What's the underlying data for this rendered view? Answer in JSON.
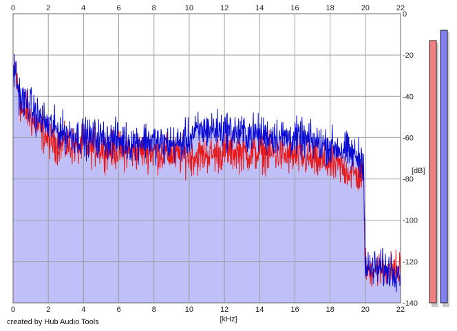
{
  "credit": "created by Hub Audio Tools",
  "chart_data": {
    "type": "line",
    "xlabel": "[kHz]",
    "ylabel": "[dB]",
    "xlim": [
      0,
      22
    ],
    "ylim": [
      -140,
      0
    ],
    "x_ticks": [
      0,
      2,
      4,
      6,
      8,
      10,
      12,
      14,
      16,
      18,
      20,
      22
    ],
    "y_ticks": [
      0,
      -20,
      -40,
      -60,
      -80,
      -100,
      -120,
      -140
    ],
    "grid": true,
    "colors": {
      "left": "#e81818",
      "right": "#0a0ad0",
      "fill": "#c0c0f8",
      "grid": "#9a9a9a"
    },
    "series": [
      {
        "channel": "left",
        "x": [
          0,
          0.1,
          0.2,
          0.3,
          0.5,
          0.8,
          1.0,
          1.3,
          1.6,
          2.0,
          2.5,
          3.0,
          3.5,
          4.0,
          4.5,
          5.0,
          5.5,
          6.0,
          6.5,
          7.0,
          7.5,
          8.0,
          8.5,
          9.0,
          9.5,
          10.0,
          10.5,
          11.0,
          11.5,
          12.0,
          12.5,
          13.0,
          13.5,
          14.0,
          14.5,
          15.0,
          15.5,
          16.0,
          16.5,
          17.0,
          17.5,
          18.0,
          18.5,
          19.0,
          19.5,
          19.9,
          20.0,
          20.1,
          20.5,
          21.0,
          21.5,
          22.0
        ],
        "values": [
          -35,
          -25,
          -33,
          -38,
          -48,
          -47,
          -51,
          -53,
          -57,
          -61,
          -63,
          -64,
          -64,
          -64,
          -65,
          -65,
          -66,
          -66,
          -67,
          -67,
          -66,
          -67,
          -68,
          -68,
          -69,
          -69,
          -69,
          -68,
          -68,
          -67,
          -67,
          -67,
          -68,
          -67,
          -68,
          -68,
          -69,
          -69,
          -70,
          -71,
          -72,
          -73,
          -74,
          -76,
          -78,
          -79,
          -122,
          -124,
          -123,
          -124,
          -124,
          -124
        ]
      },
      {
        "channel": "right",
        "x": [
          0,
          0.1,
          0.2,
          0.3,
          0.5,
          0.8,
          1.0,
          1.3,
          1.6,
          2.0,
          2.5,
          3.0,
          3.5,
          4.0,
          4.5,
          5.0,
          5.5,
          6.0,
          6.5,
          7.0,
          7.5,
          8.0,
          8.5,
          9.0,
          9.5,
          10.0,
          10.5,
          11.0,
          11.5,
          12.0,
          12.5,
          13.0,
          13.5,
          14.0,
          14.5,
          15.0,
          15.5,
          16.0,
          16.5,
          17.0,
          17.5,
          18.0,
          18.5,
          19.0,
          19.5,
          19.9,
          20.0,
          20.1,
          20.5,
          21.0,
          21.5,
          22.0
        ],
        "values": [
          -30,
          -25,
          -32,
          -37,
          -42,
          -43,
          -45,
          -49,
          -51,
          -54,
          -56,
          -58,
          -59,
          -60,
          -60,
          -60,
          -61,
          -61,
          -62,
          -62,
          -61,
          -62,
          -63,
          -63,
          -63,
          -60,
          -57,
          -56,
          -56,
          -56,
          -57,
          -58,
          -58,
          -58,
          -59,
          -59,
          -60,
          -60,
          -61,
          -62,
          -63,
          -64,
          -65,
          -67,
          -69,
          -71,
          -122,
          -124,
          -123,
          -124,
          -124,
          -124
        ]
      }
    ],
    "level_meters": [
      {
        "channel": "left",
        "value": -13
      },
      {
        "channel": "right",
        "value": -8
      }
    ]
  }
}
